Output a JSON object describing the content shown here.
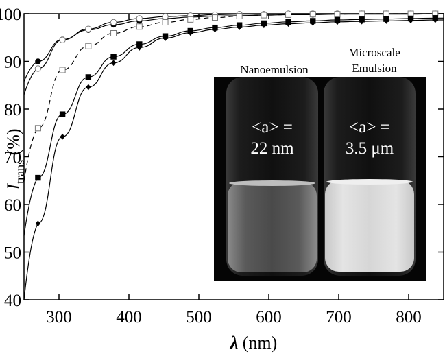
{
  "chart_data": {
    "type": "scatter",
    "title": "",
    "xlabel": "λ (nm)",
    "ylabel": "I_trans (%)",
    "xlim": [
      250,
      850
    ],
    "ylim": [
      40,
      100
    ],
    "x_ticks": [
      300,
      400,
      500,
      600,
      700,
      800
    ],
    "y_ticks": [
      40,
      50,
      60,
      70,
      80,
      90,
      100
    ],
    "grid": false,
    "x": [
      270,
      305,
      342,
      378,
      415,
      452,
      488,
      523,
      558,
      593,
      628,
      663,
      698,
      733,
      768,
      803,
      838
    ],
    "series": [
      {
        "marker": "circle-filled",
        "line": "solid",
        "values": [
          90.0,
          94.6,
          96.6,
          97.7,
          98.5,
          99.0,
          99.3,
          99.5,
          99.6,
          99.7,
          99.8,
          99.8,
          99.9,
          99.9,
          99.9,
          99.9,
          100.0
        ]
      },
      {
        "marker": "circle-open",
        "line": "solid",
        "values": [
          88.5,
          94.5,
          96.8,
          98.2,
          99.0,
          99.4,
          99.6,
          99.8,
          99.9,
          99.9,
          100.0,
          100.0,
          100.0,
          100.0,
          100.0,
          100.0,
          100.0
        ]
      },
      {
        "marker": "square-open",
        "line": "dashed",
        "values": [
          76.0,
          88.2,
          93.2,
          95.9,
          97.3,
          98.2,
          98.8,
          99.2,
          99.5,
          99.7,
          99.8,
          99.9,
          99.9,
          100.0,
          100.0,
          100.0,
          100.0
        ]
      },
      {
        "marker": "square-filled",
        "line": "solid",
        "values": [
          65.6,
          78.9,
          86.7,
          91.0,
          93.6,
          95.3,
          96.4,
          97.1,
          97.6,
          98.0,
          98.3,
          98.5,
          98.7,
          98.8,
          98.9,
          99.0,
          99.1
        ]
      },
      {
        "marker": "diamond-filled",
        "line": "solid",
        "values": [
          56.0,
          74.2,
          84.6,
          89.7,
          92.9,
          94.9,
          96.0,
          96.7,
          97.2,
          97.6,
          97.9,
          98.1,
          98.3,
          98.4,
          98.5,
          98.6,
          98.7
        ]
      }
    ],
    "inset": {
      "left_label": "Nanoemulsion",
      "right_label_line1": "Microscale",
      "right_label_line2": "Emulsion",
      "left_value_line1": "<a> =",
      "left_value_line2": "22 nm",
      "right_value_line1": "<a> =",
      "right_value_line2": "3.5 μm"
    }
  }
}
